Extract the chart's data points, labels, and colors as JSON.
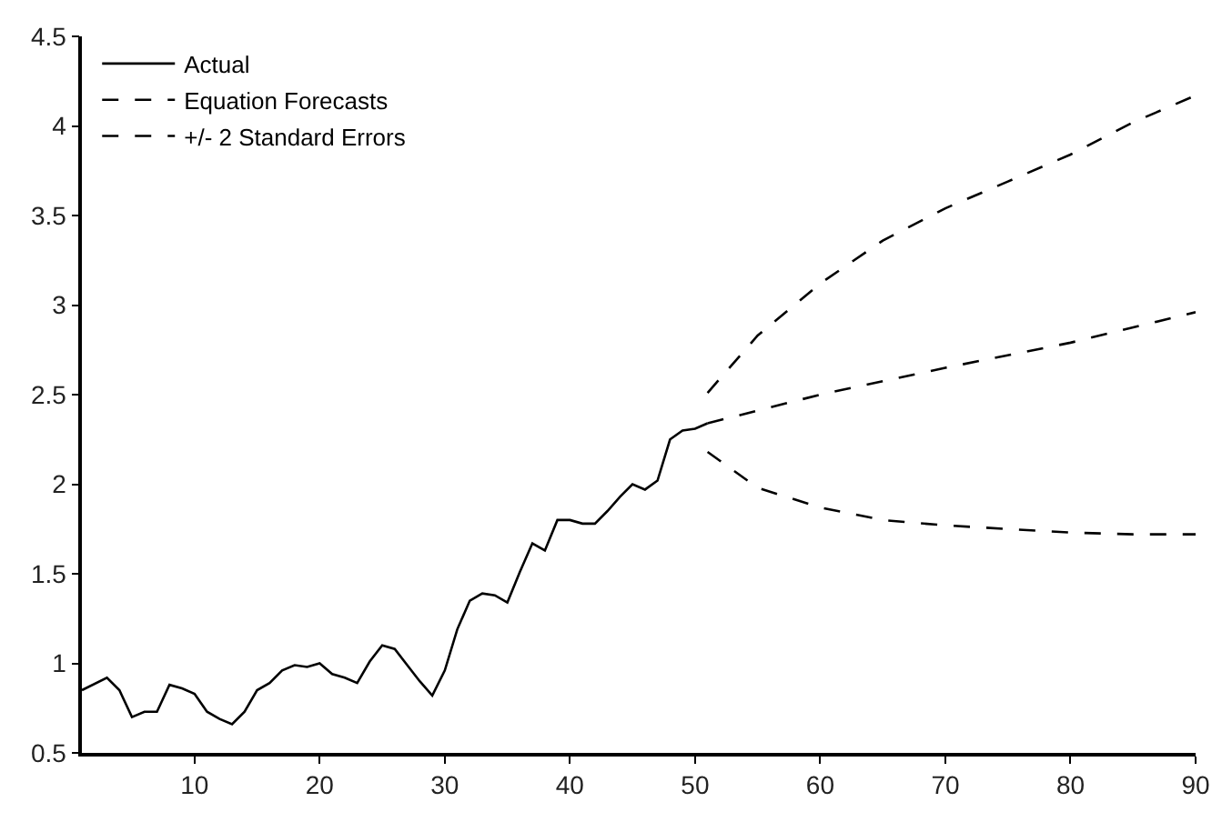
{
  "chart_data": {
    "type": "line",
    "xlim": [
      1,
      90
    ],
    "xticks": [
      10,
      20,
      30,
      40,
      50,
      60,
      70,
      80,
      90
    ],
    "ylim": [
      0.5,
      4.5
    ],
    "yticks": [
      0.5,
      1,
      1.5,
      2,
      2.5,
      3,
      3.5,
      4,
      4.5
    ],
    "legend": "top left",
    "series": [
      {
        "name": "Actual",
        "color": "#000000",
        "line_style": "solid",
        "x": [
          1,
          3,
          4,
          5,
          6,
          7,
          8,
          9,
          10,
          11,
          12,
          13,
          14,
          15,
          16,
          17,
          18,
          19,
          20,
          21,
          22,
          23,
          24,
          25,
          26,
          27,
          28,
          29,
          30,
          31,
          32,
          33,
          34,
          35,
          36,
          37,
          38,
          39,
          40,
          41,
          42,
          43,
          44,
          45,
          46,
          47,
          48,
          49,
          50,
          51
        ],
        "values": [
          0.85,
          0.92,
          0.85,
          0.7,
          0.73,
          0.73,
          0.88,
          0.86,
          0.83,
          0.73,
          0.69,
          0.66,
          0.73,
          0.85,
          0.89,
          0.96,
          0.99,
          0.98,
          1.0,
          0.94,
          0.92,
          0.89,
          1.01,
          1.1,
          1.08,
          0.99,
          0.9,
          0.82,
          0.96,
          1.19,
          1.35,
          1.39,
          1.38,
          1.34,
          1.51,
          1.67,
          1.63,
          1.8,
          1.8,
          1.78,
          1.78,
          1.85,
          1.93,
          2.0,
          1.97,
          2.02,
          2.25,
          2.3,
          2.31,
          2.34
        ]
      },
      {
        "name": "Equation Forecasts",
        "color": "#000000",
        "line_style": "dashed",
        "x": [
          51,
          60,
          70,
          80,
          90
        ],
        "values": [
          2.34,
          2.5,
          2.65,
          2.79,
          2.96
        ]
      },
      {
        "name": "+/- 2 Standard Errors",
        "color": "#000000",
        "line_style": "dashed",
        "x": [
          51,
          55,
          60,
          65,
          70,
          75,
          80,
          85,
          90
        ],
        "values": [
          2.51,
          2.83,
          3.12,
          3.36,
          3.54,
          3.69,
          3.84,
          4.02,
          4.17
        ]
      },
      {
        "color": "#000000",
        "line_style": "dashed",
        "x": [
          51,
          55,
          60,
          65,
          70,
          75,
          80,
          85,
          90
        ],
        "values": [
          2.18,
          1.98,
          1.87,
          1.8,
          1.77,
          1.75,
          1.73,
          1.72,
          1.72
        ]
      }
    ]
  }
}
